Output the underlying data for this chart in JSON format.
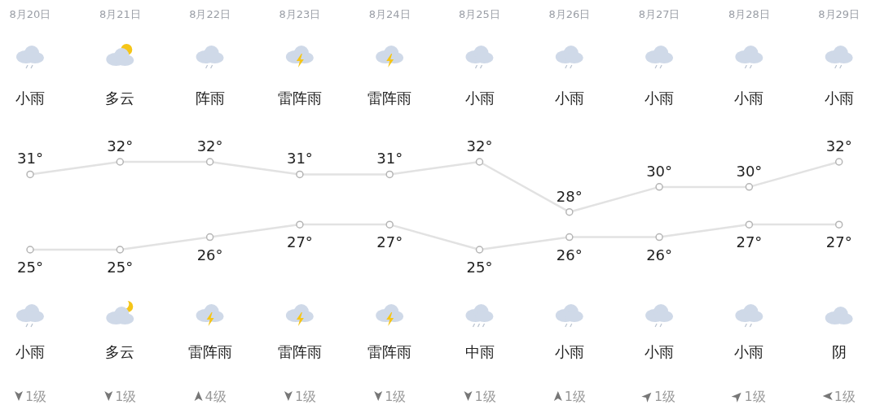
{
  "chart_data": {
    "type": "line",
    "relative": false,
    "categories": [
      "8月20日",
      "8月21日",
      "8月22日",
      "8月23日",
      "8月24日",
      "8月25日",
      "8月26日",
      "8月27日",
      "8月28日",
      "8月29日"
    ],
    "series": [
      {
        "color": "#e2e2e2",
        "values": [
          31,
          32,
          32,
          31,
          31,
          32,
          28,
          30,
          30,
          32
        ],
        "value_labels": [
          "31°",
          "32°",
          "32°",
          "31°",
          "31°",
          "32°",
          "28°",
          "30°",
          "30°",
          "32°"
        ]
      },
      {
        "color": "#e2e2e2",
        "values": [
          25,
          25,
          26,
          27,
          27,
          25,
          26,
          26,
          27,
          27
        ],
        "value_labels": [
          "25°",
          "25°",
          "26°",
          "27°",
          "27°",
          "25°",
          "26°",
          "26°",
          "27°",
          "27°"
        ]
      }
    ],
    "marker": "circle",
    "annotations": [
      "小雨",
      "多云",
      "阵雨",
      "雷阵雨",
      "雷阵雨",
      "小雨",
      "小雨",
      "小雨",
      "小雨",
      "小雨",
      "小雨",
      "多云",
      "雷阵雨",
      "雷阵雨",
      "雷阵雨",
      "中雨",
      "小雨",
      "小雨",
      "小雨",
      "阴",
      "1级",
      "1级",
      "4级",
      "1级",
      "1级",
      "1级",
      "1级",
      "1级",
      "1级",
      "1级"
    ]
  }
}
